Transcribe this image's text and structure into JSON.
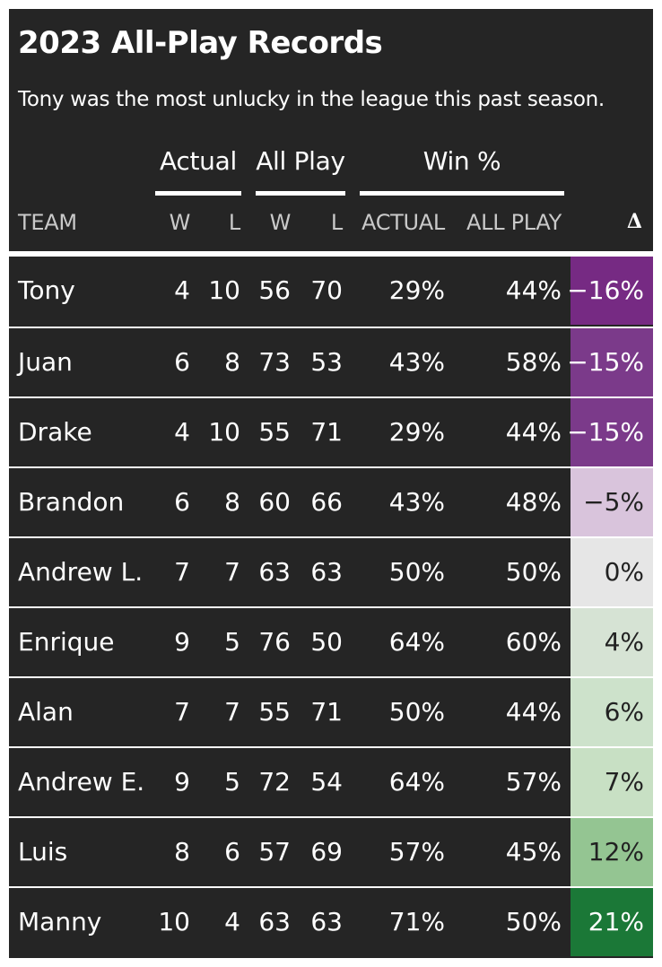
{
  "title": "2023 All-Play Records",
  "subtitle": "Tony was the most unlucky in the league this past season.",
  "groups": {
    "actual": "Actual",
    "all_play": "All Play",
    "win_pct": "Win %"
  },
  "columns": {
    "team": "TEAM",
    "w": "W",
    "l": "L",
    "actual": "ACTUAL",
    "all_play": "ALL PLAY",
    "delta": "Δ"
  },
  "rows": [
    {
      "team": "Tony",
      "w": "4",
      "l": "10",
      "apw": "56",
      "apl": "70",
      "actual": "29%",
      "allplay": "44%",
      "delta": "−16%",
      "bg": "#762a83",
      "fg": "#ffffff"
    },
    {
      "team": "Juan",
      "w": "6",
      "l": "8",
      "apw": "73",
      "apl": "53",
      "actual": "43%",
      "allplay": "58%",
      "delta": "−15%",
      "bg": "#7b3a8a",
      "fg": "#ffffff"
    },
    {
      "team": "Drake",
      "w": "4",
      "l": "10",
      "apw": "55",
      "apl": "71",
      "actual": "29%",
      "allplay": "44%",
      "delta": "−15%",
      "bg": "#7b3a8a",
      "fg": "#ffffff"
    },
    {
      "team": "Brandon",
      "w": "6",
      "l": "8",
      "apw": "60",
      "apl": "66",
      "actual": "43%",
      "allplay": "48%",
      "delta": "−5%",
      "bg": "#d9c4dc",
      "fg": "#222222"
    },
    {
      "team": "Andrew L.",
      "w": "7",
      "l": "7",
      "apw": "63",
      "apl": "63",
      "actual": "50%",
      "allplay": "50%",
      "delta": "0%",
      "bg": "#e6e6e6",
      "fg": "#222222"
    },
    {
      "team": "Enrique",
      "w": "9",
      "l": "5",
      "apw": "76",
      "apl": "50",
      "actual": "64%",
      "allplay": "60%",
      "delta": "4%",
      "bg": "#d6e3d4",
      "fg": "#222222"
    },
    {
      "team": "Alan",
      "w": "7",
      "l": "7",
      "apw": "55",
      "apl": "71",
      "actual": "50%",
      "allplay": "44%",
      "delta": "6%",
      "bg": "#cde2cb",
      "fg": "#222222"
    },
    {
      "team": "Andrew E.",
      "w": "9",
      "l": "5",
      "apw": "72",
      "apl": "54",
      "actual": "64%",
      "allplay": "57%",
      "delta": "7%",
      "bg": "#c8e0c4",
      "fg": "#222222"
    },
    {
      "team": "Luis",
      "w": "8",
      "l": "6",
      "apw": "57",
      "apl": "69",
      "actual": "57%",
      "allplay": "45%",
      "delta": "12%",
      "bg": "#94c592",
      "fg": "#222222"
    },
    {
      "team": "Manny",
      "w": "10",
      "l": "4",
      "apw": "63",
      "apl": "63",
      "actual": "71%",
      "allplay": "50%",
      "delta": "21%",
      "bg": "#1b7837",
      "fg": "#ffffff"
    }
  ],
  "chart_data": {
    "type": "table",
    "title": "2023 All-Play Records",
    "subtitle": "Tony was the most unlucky in the league this past season.",
    "columns": [
      "TEAM",
      "Actual W",
      "Actual L",
      "All Play W",
      "All Play L",
      "Win % ACTUAL",
      "Win % ALL PLAY",
      "Δ"
    ],
    "rows": [
      [
        "Tony",
        4,
        10,
        56,
        70,
        29,
        44,
        -16
      ],
      [
        "Juan",
        6,
        8,
        73,
        53,
        43,
        58,
        -15
      ],
      [
        "Drake",
        4,
        10,
        55,
        71,
        29,
        44,
        -15
      ],
      [
        "Brandon",
        6,
        8,
        60,
        66,
        43,
        48,
        -5
      ],
      [
        "Andrew L.",
        7,
        7,
        63,
        63,
        50,
        50,
        0
      ],
      [
        "Enrique",
        9,
        5,
        76,
        50,
        64,
        60,
        4
      ],
      [
        "Alan",
        7,
        7,
        55,
        71,
        50,
        44,
        6
      ],
      [
        "Andrew E.",
        9,
        5,
        72,
        54,
        64,
        57,
        7
      ],
      [
        "Luis",
        8,
        6,
        57,
        69,
        57,
        45,
        12
      ],
      [
        "Manny",
        10,
        4,
        63,
        63,
        71,
        50,
        21
      ]
    ]
  }
}
